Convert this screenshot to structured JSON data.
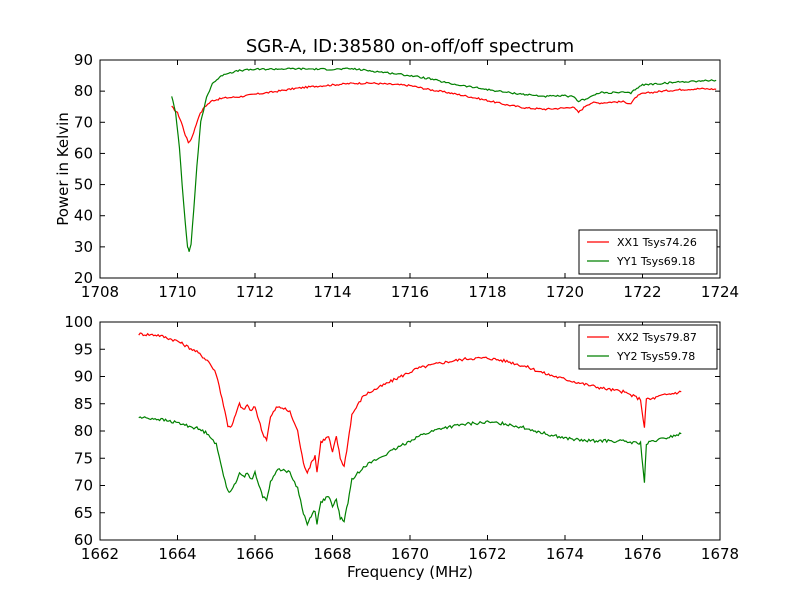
{
  "figure": {
    "title": "SGR-A, ID:38580 on-off/off spectrum",
    "ylabel": "Power in Kelvin",
    "xlabel": "Frequency (MHz)"
  },
  "chart_data": [
    {
      "type": "line",
      "title": "SGR-A, ID:38580 on-off/off spectrum",
      "ylabel": "Power in Kelvin",
      "xlabel": "",
      "xlim": [
        1708,
        1724
      ],
      "ylim": [
        20,
        90
      ],
      "xticks": [
        1708,
        1710,
        1712,
        1714,
        1716,
        1718,
        1720,
        1722,
        1724
      ],
      "yticks": [
        20,
        30,
        40,
        50,
        60,
        70,
        80,
        90
      ],
      "grid": false,
      "legend": "bottom-right",
      "series": [
        {
          "name": "XX1 Tsys74.26",
          "color": "#ff0000",
          "x": [
            1709.85,
            1710.0,
            1710.1,
            1710.2,
            1710.28,
            1710.35,
            1710.45,
            1710.55,
            1710.7,
            1710.9,
            1711.2,
            1711.6,
            1712.0,
            1712.5,
            1713.0,
            1713.5,
            1714.0,
            1714.5,
            1715.0,
            1715.5,
            1716.0,
            1716.5,
            1717.0,
            1717.5,
            1718.0,
            1718.5,
            1719.0,
            1719.5,
            1720.0,
            1720.2,
            1720.35,
            1720.45,
            1720.55,
            1720.7,
            1720.9,
            1721.2,
            1721.5,
            1721.7,
            1721.85,
            1722.0,
            1722.5,
            1723.0,
            1723.5,
            1723.9
          ],
          "y": [
            75,
            73,
            70,
            66,
            63.5,
            64.5,
            68,
            72,
            75,
            77,
            77.8,
            78.2,
            79,
            79.8,
            80.8,
            81.5,
            82,
            82.5,
            82.6,
            82.2,
            81.8,
            80.5,
            79.5,
            78.3,
            77,
            75.6,
            74.6,
            74.2,
            74.6,
            75,
            73.2,
            74.3,
            75.5,
            76.3,
            76.2,
            76.5,
            76.6,
            76,
            78.3,
            79.2,
            80,
            80.5,
            80.8,
            80.6
          ]
        },
        {
          "name": "YY1 Tsys69.18",
          "color": "#008000",
          "x": [
            1709.85,
            1709.95,
            1710.05,
            1710.12,
            1710.2,
            1710.26,
            1710.3,
            1710.35,
            1710.42,
            1710.5,
            1710.6,
            1710.75,
            1710.9,
            1711.2,
            1711.6,
            1712.0,
            1712.5,
            1713.0,
            1713.5,
            1714.0,
            1714.5,
            1715.0,
            1715.5,
            1716.0,
            1716.5,
            1717.0,
            1717.5,
            1718.0,
            1718.5,
            1719.0,
            1719.5,
            1720.0,
            1720.2,
            1720.35,
            1720.5,
            1720.7,
            1720.9,
            1721.2,
            1721.5,
            1721.7,
            1721.85,
            1722.0,
            1722.5,
            1723.0,
            1723.5,
            1723.9
          ],
          "y": [
            78.5,
            73,
            62,
            50,
            38,
            30,
            28.5,
            31,
            42,
            56,
            70,
            78,
            82.5,
            85.5,
            86.6,
            87,
            87.1,
            87.2,
            87.1,
            87,
            87.2,
            86.5,
            85.8,
            85,
            84,
            82.5,
            81.5,
            80.5,
            79.6,
            78.9,
            78.3,
            78.5,
            78.2,
            76.8,
            77.4,
            78.4,
            79.5,
            79.5,
            79.6,
            79.3,
            81,
            82,
            82.5,
            83,
            83.3,
            83.5
          ]
        }
      ]
    },
    {
      "type": "line",
      "title": "",
      "ylabel": "",
      "xlabel": "Frequency (MHz)",
      "xlim": [
        1662,
        1678
      ],
      "ylim": [
        60,
        100
      ],
      "xticks": [
        1662,
        1664,
        1666,
        1668,
        1670,
        1672,
        1674,
        1676,
        1678
      ],
      "yticks": [
        60,
        65,
        70,
        75,
        80,
        85,
        90,
        95,
        100
      ],
      "grid": false,
      "legend": "top-right",
      "series": [
        {
          "name": "XX2 Tsys79.87",
          "color": "#ff0000",
          "x": [
            1663.0,
            1663.5,
            1664.0,
            1664.5,
            1664.8,
            1665.0,
            1665.15,
            1665.3,
            1665.4,
            1665.5,
            1665.6,
            1665.7,
            1665.8,
            1665.9,
            1666.0,
            1666.1,
            1666.2,
            1666.3,
            1666.4,
            1666.55,
            1666.7,
            1666.9,
            1667.1,
            1667.25,
            1667.35,
            1667.45,
            1667.55,
            1667.6,
            1667.7,
            1667.8,
            1667.9,
            1668.0,
            1668.1,
            1668.2,
            1668.3,
            1668.4,
            1668.5,
            1668.8,
            1669.2,
            1669.7,
            1670.2,
            1670.8,
            1671.5,
            1672.0,
            1672.5,
            1673.0,
            1673.5,
            1674.0,
            1674.5,
            1675.0,
            1675.5,
            1675.8,
            1675.95,
            1676.05,
            1676.1,
            1676.2,
            1676.5,
            1677.0
          ],
          "y": [
            97.8,
            97.6,
            96.5,
            94.5,
            92.8,
            90.5,
            86,
            81,
            80.8,
            83,
            85,
            83.8,
            84.8,
            83.6,
            84.5,
            82,
            79.5,
            78.5,
            82.5,
            84.3,
            84.3,
            83.5,
            80,
            74,
            72.5,
            74,
            75.5,
            72.5,
            78,
            78.5,
            79,
            76,
            79,
            75,
            73.5,
            78,
            83,
            86.5,
            88,
            89.8,
            91.5,
            92.5,
            93.3,
            93.4,
            92.8,
            91.8,
            90.5,
            89.5,
            88.6,
            87.8,
            87.2,
            86.3,
            85.8,
            80.5,
            86,
            85.8,
            86.5,
            87.2
          ]
        },
        {
          "name": "YY2 Tsys59.78",
          "color": "#008000",
          "x": [
            1663.0,
            1663.5,
            1664.0,
            1664.5,
            1664.8,
            1665.0,
            1665.15,
            1665.3,
            1665.4,
            1665.5,
            1665.6,
            1665.7,
            1665.8,
            1665.9,
            1666.0,
            1666.1,
            1666.2,
            1666.3,
            1666.4,
            1666.55,
            1666.7,
            1666.9,
            1667.1,
            1667.25,
            1667.35,
            1667.45,
            1667.55,
            1667.6,
            1667.7,
            1667.8,
            1667.9,
            1668.0,
            1668.1,
            1668.2,
            1668.3,
            1668.4,
            1668.5,
            1668.8,
            1669.2,
            1669.7,
            1670.2,
            1670.8,
            1671.5,
            1672.0,
            1672.5,
            1673.0,
            1673.5,
            1674.0,
            1674.5,
            1675.0,
            1675.5,
            1675.8,
            1675.95,
            1676.05,
            1676.1,
            1676.2,
            1676.5,
            1677.0
          ],
          "y": [
            82.5,
            82.2,
            81.5,
            80.5,
            79.5,
            77.5,
            73,
            69,
            69,
            70.5,
            72.5,
            71.5,
            72.5,
            71,
            72.3,
            70,
            68,
            67.5,
            70.5,
            72.8,
            73,
            72.3,
            69.5,
            65,
            62.8,
            64.5,
            65.5,
            63,
            67,
            67.5,
            68,
            66,
            67.5,
            64,
            63.5,
            67,
            71,
            73.5,
            75,
            77,
            79,
            80.5,
            81.3,
            81.6,
            81.3,
            80.5,
            79.5,
            78.7,
            78.2,
            78.2,
            78.1,
            77.8,
            77.8,
            70.5,
            77.5,
            78,
            78.5,
            79.5
          ]
        }
      ]
    }
  ]
}
